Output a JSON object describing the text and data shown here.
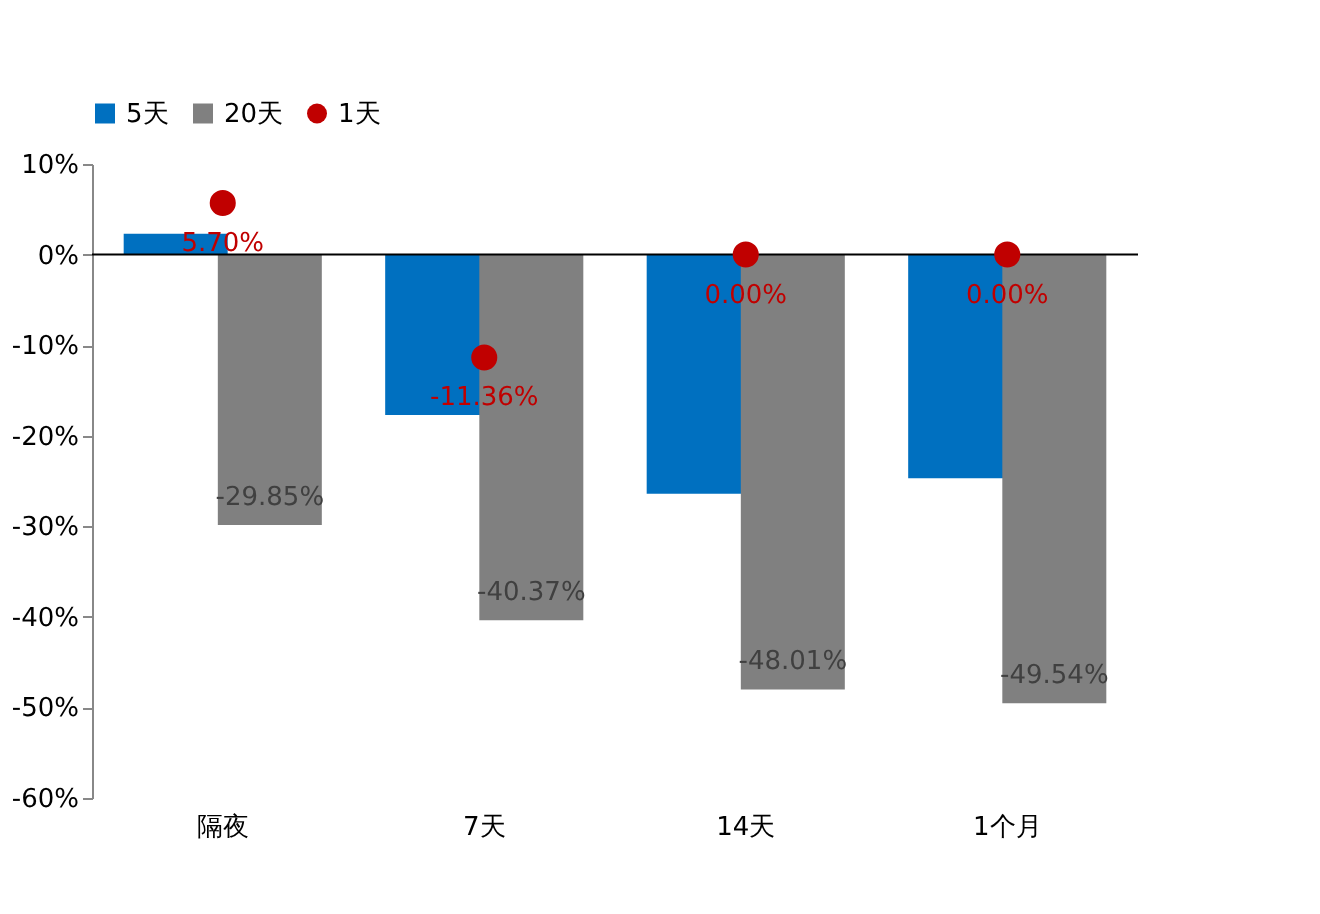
{
  "chart_data": {
    "type": "bar",
    "categories": [
      "隔夜",
      "7天",
      "14天",
      "1个月"
    ],
    "series": [
      {
        "name": "5天",
        "color": "#0070c0",
        "values": [
          2.3,
          -17.7,
          -26.4,
          -24.7
        ]
      },
      {
        "name": "20天",
        "color": "#808080",
        "values": [
          -29.85,
          -40.37,
          -48.01,
          -49.54
        ],
        "value_labels": [
          "-29.85%",
          "-40.37%",
          "-48.01%",
          "-49.54%"
        ]
      },
      {
        "name": "1天",
        "type": "scatter",
        "color": "#c00000",
        "values": [
          5.7,
          -11.36,
          0.0,
          0.0
        ],
        "value_labels": [
          "5.70%",
          "-11.36%",
          "0.00%",
          "0.00%"
        ]
      }
    ],
    "ylim": [
      -60,
      10
    ],
    "yticks": [
      {
        "value": 10,
        "label": "10%"
      },
      {
        "value": 0,
        "label": "0%"
      },
      {
        "value": -10,
        "label": "-10%"
      },
      {
        "value": -20,
        "label": "-20%"
      },
      {
        "value": -30,
        "label": "-30%"
      },
      {
        "value": -40,
        "label": "-40%"
      },
      {
        "value": -50,
        "label": "-50%"
      },
      {
        "value": -60,
        "label": "-60%"
      }
    ],
    "legend": "top",
    "marker": "circle"
  }
}
